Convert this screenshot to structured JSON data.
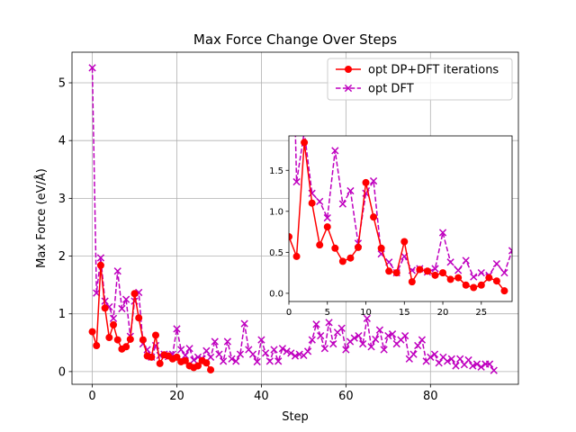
{
  "chart_data": [
    {
      "type": "line",
      "title": "Max Force Change Over Steps",
      "xlabel": "Step",
      "ylabel": "Max Force (eV/Å)",
      "xlim": [
        -4.8,
        100.8
      ],
      "ylim": [
        -0.22,
        5.53
      ],
      "xticks": [
        0,
        20,
        40,
        60,
        80
      ],
      "yticks": [
        0,
        1,
        2,
        3,
        4,
        5
      ],
      "grid": true,
      "legend": "top-right",
      "series": [
        {
          "name": "opt DP+DFT iterations",
          "color": "#ff0000",
          "linestyle": "solid",
          "marker": "circle",
          "x": [
            0,
            1,
            2,
            3,
            4,
            5,
            6,
            7,
            8,
            9,
            10,
            11,
            12,
            13,
            14,
            15,
            16,
            17,
            18,
            19,
            20,
            21,
            22,
            23,
            24,
            25,
            26,
            27,
            28
          ],
          "y": [
            0.69,
            0.45,
            1.84,
            1.1,
            0.59,
            0.81,
            0.55,
            0.39,
            0.43,
            0.56,
            1.35,
            0.93,
            0.55,
            0.27,
            0.25,
            0.63,
            0.14,
            0.29,
            0.27,
            0.22,
            0.25,
            0.17,
            0.19,
            0.1,
            0.07,
            0.1,
            0.19,
            0.15,
            0.03
          ]
        },
        {
          "name": "opt DFT",
          "color": "#bf00bf",
          "linestyle": "dashed",
          "marker": "x",
          "x": [
            0,
            1,
            2,
            3,
            4,
            5,
            6,
            7,
            8,
            9,
            10,
            11,
            12,
            13,
            14,
            15,
            16,
            17,
            18,
            19,
            20,
            21,
            22,
            23,
            24,
            25,
            26,
            27,
            28,
            29,
            30,
            31,
            32,
            33,
            34,
            35,
            36,
            37,
            38,
            39,
            40,
            41,
            42,
            43,
            44,
            45,
            46,
            47,
            48,
            49,
            50,
            51,
            52,
            53,
            54,
            55,
            56,
            57,
            58,
            59,
            60,
            61,
            62,
            63,
            64,
            65,
            66,
            67,
            68,
            69,
            70,
            71,
            72,
            73,
            74,
            75,
            76,
            77,
            78,
            79,
            80,
            81,
            82,
            83,
            84,
            85,
            86,
            87,
            88,
            89,
            90,
            91,
            92,
            93,
            94,
            95
          ],
          "y": [
            5.26,
            1.36,
            1.97,
            1.22,
            1.12,
            0.92,
            1.74,
            1.09,
            1.25,
            0.61,
            1.22,
            1.37,
            0.48,
            0.38,
            0.25,
            0.45,
            0.28,
            0.3,
            0.26,
            0.3,
            0.74,
            0.38,
            0.28,
            0.4,
            0.2,
            0.25,
            0.22,
            0.36,
            0.25,
            0.52,
            0.3,
            0.18,
            0.52,
            0.22,
            0.18,
            0.3,
            0.83,
            0.38,
            0.3,
            0.17,
            0.55,
            0.32,
            0.18,
            0.38,
            0.18,
            0.4,
            0.35,
            0.32,
            0.27,
            0.3,
            0.28,
            0.35,
            0.55,
            0.82,
            0.62,
            0.4,
            0.85,
            0.48,
            0.68,
            0.75,
            0.38,
            0.52,
            0.58,
            0.62,
            0.48,
            0.92,
            0.43,
            0.56,
            0.72,
            0.38,
            0.62,
            0.65,
            0.48,
            0.55,
            0.62,
            0.22,
            0.3,
            0.45,
            0.55,
            0.18,
            0.25,
            0.3,
            0.15,
            0.25,
            0.18,
            0.22,
            0.1,
            0.22,
            0.12,
            0.2,
            0.1,
            0.13,
            0.08,
            0.13,
            0.13,
            0.02
          ]
        }
      ]
    },
    {
      "type": "line",
      "title": "",
      "xlabel": "",
      "ylabel": "",
      "xlim": [
        0,
        29
      ],
      "ylim": [
        -0.1,
        1.92
      ],
      "xticks": [
        0,
        5,
        10,
        15,
        20,
        25
      ],
      "yticks": [
        0.0,
        0.5,
        1.0,
        1.5
      ],
      "ytick_labels": [
        "0.0",
        "0.5",
        "1.0",
        "1.5"
      ],
      "grid": false,
      "series_ref": "inset shows steps 0-28 of both series above"
    }
  ]
}
